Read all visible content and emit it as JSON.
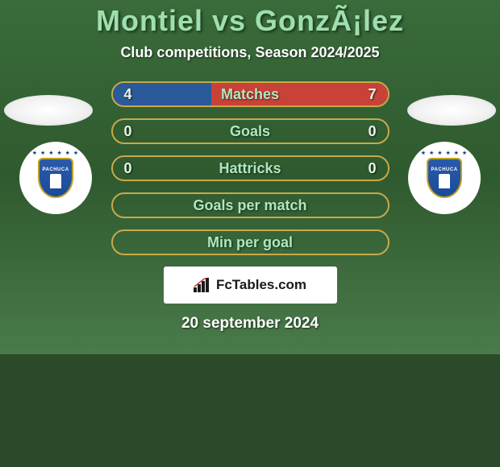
{
  "header": {
    "title": "Montiel vs GonzÃ¡lez",
    "subtitle": "Club competitions, Season 2024/2025"
  },
  "club": {
    "name": "PACHUCA",
    "badge_primary": "#1a4a9a",
    "badge_border": "#c0a020",
    "star_color": "#1a3a7a"
  },
  "stats": {
    "rows": [
      {
        "label": "Matches",
        "left": "4",
        "right": "7",
        "left_pct": 36,
        "right_pct": 64,
        "left_color": "#2a5a9a",
        "right_color": "#c9423a",
        "show_values": true
      },
      {
        "label": "Goals",
        "left": "0",
        "right": "0",
        "left_pct": 0,
        "right_pct": 0,
        "left_color": "#2a5a9a",
        "right_color": "#c9423a",
        "show_values": true
      },
      {
        "label": "Hattricks",
        "left": "0",
        "right": "0",
        "left_pct": 0,
        "right_pct": 0,
        "left_color": "#2a5a9a",
        "right_color": "#c9423a",
        "show_values": true
      },
      {
        "label": "Goals per match",
        "left": "",
        "right": "",
        "left_pct": 0,
        "right_pct": 0,
        "left_color": "#2a5a9a",
        "right_color": "#c9423a",
        "show_values": false
      },
      {
        "label": "Min per goal",
        "left": "",
        "right": "",
        "left_pct": 0,
        "right_pct": 0,
        "left_color": "#2a5a9a",
        "right_color": "#c9423a",
        "show_values": false
      }
    ],
    "bar_border": "#c9a94a",
    "label_color": "#aee8be"
  },
  "brand": {
    "text": "FcTables.com"
  },
  "date": "20 september 2024",
  "colors": {
    "bg_top": "#3a6b3a",
    "bg_mid": "#2f5a2f",
    "bg_bottom": "#4a7a4a",
    "title_color": "#9fdfaf",
    "text_white": "#ffffff"
  }
}
